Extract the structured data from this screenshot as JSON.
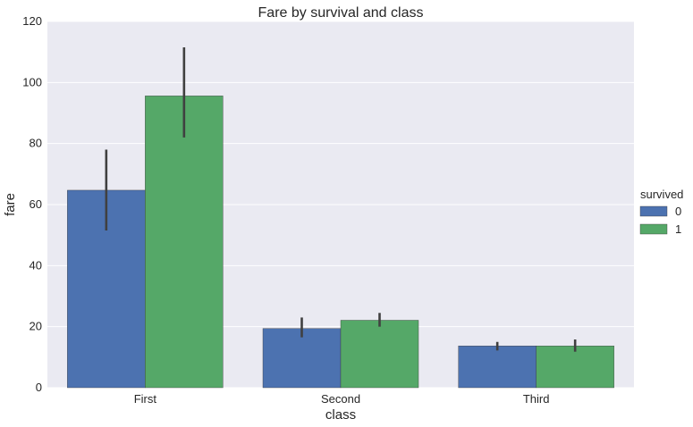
{
  "chart_data": {
    "type": "bar",
    "title": "Fare by survival and class",
    "xlabel": "class",
    "ylabel": "fare",
    "categories": [
      "First",
      "Second",
      "Third"
    ],
    "ylim": [
      0,
      120
    ],
    "yticks": [
      0,
      20,
      40,
      60,
      80,
      100,
      120
    ],
    "grid": true,
    "legend": {
      "title": "survived",
      "placement": "right"
    },
    "series": [
      {
        "name": "0",
        "color": "#4c72b0",
        "values": [
          64.7,
          19.4,
          13.7
        ],
        "ci_low": [
          51.5,
          16.5,
          12.2
        ],
        "ci_high": [
          78.0,
          23.0,
          15.0
        ]
      },
      {
        "name": "1",
        "color": "#55a868",
        "values": [
          95.6,
          22.1,
          13.7
        ],
        "ci_low": [
          82.0,
          20.0,
          11.8
        ],
        "ci_high": [
          111.5,
          24.5,
          15.8
        ]
      }
    ]
  }
}
